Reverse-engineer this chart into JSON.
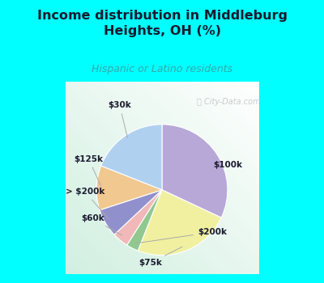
{
  "title": "Income distribution in Middleburg\nHeights, OH (%)",
  "subtitle": "Hispanic or Latino residents",
  "title_color": "#1a1a2e",
  "subtitle_color": "#33aaaa",
  "background_outer": "#00ffff",
  "slices": [
    {
      "label": "$100k",
      "value": 32,
      "color": "#b8a8d8"
    },
    {
      "label": "$75k",
      "value": 24,
      "color": "#f0f0a0"
    },
    {
      "label": "$200k",
      "value": 3,
      "color": "#90c890"
    },
    {
      "label": "$60k",
      "value": 4,
      "color": "#f0b8b8"
    },
    {
      "label": "> $200k",
      "value": 7,
      "color": "#9090cc"
    },
    {
      "label": "$125k",
      "value": 11,
      "color": "#f0c890"
    },
    {
      "label": "$30k",
      "value": 19,
      "color": "#b0d0f0"
    }
  ],
  "label_arrow_color": "#aaaaaa",
  "watermark": "City-Data.com",
  "watermark_color": "#aaaaaa",
  "figsize": [
    4.0,
    3.5
  ],
  "dpi": 100
}
